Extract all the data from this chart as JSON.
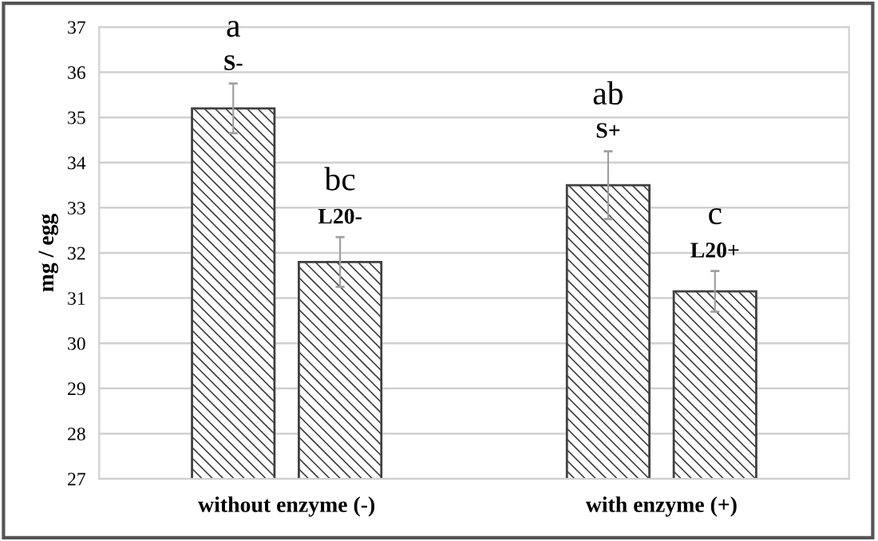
{
  "chart_data": {
    "type": "bar",
    "categories": [
      "without enzyme (-)",
      "with enzyme (+)"
    ],
    "ylabel": "mg / egg",
    "ylim": [
      27,
      37
    ],
    "yticks": [
      27,
      28,
      29,
      30,
      31,
      32,
      33,
      34,
      35,
      36,
      37
    ],
    "grid": "y",
    "series": [
      {
        "color": "#404040",
        "values": [
          35.2,
          33.5
        ],
        "errors": [
          0.55,
          0.75
        ],
        "value_labels": [
          "S-",
          "S+"
        ]
      },
      {
        "color": "#404040",
        "values": [
          31.8,
          31.15
        ],
        "errors": [
          0.55,
          0.45
        ],
        "value_labels": [
          "L20-",
          "L20+"
        ]
      }
    ],
    "annotations": [
      "a",
      "bc",
      "ab",
      "c"
    ]
  }
}
